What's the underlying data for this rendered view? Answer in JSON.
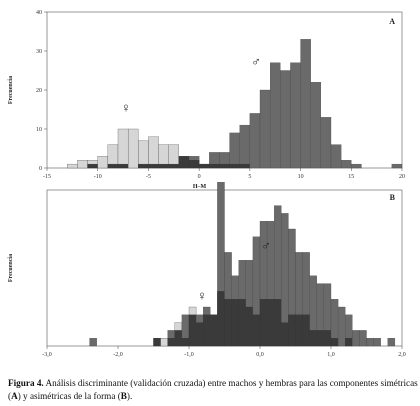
{
  "caption": {
    "figure_label": "Figura 4.",
    "text_1": " Análisis discriminante (validación cruzada) entre machos y hembras para las componentes simétricas (",
    "label_a": "A",
    "text_2": ") y asimétricas de la forma (",
    "label_b": "B",
    "text_3": ")."
  },
  "chart_data": [
    {
      "type": "bar",
      "panel": "A",
      "ylabel": "Frecuencia",
      "xlabel": "H–M",
      "xlim": [
        -15,
        20
      ],
      "ylim": [
        0,
        40
      ],
      "xticks": [
        "-15",
        "-10",
        "-5",
        "0",
        "5",
        "10",
        "15",
        "20"
      ],
      "yticks": [
        "0",
        "10",
        "20",
        "30",
        "40"
      ],
      "bin_width": 1,
      "female_symbol": "♀",
      "male_symbol": "♂",
      "colors": {
        "female": "#d6d6d6",
        "male": "#6a6a6a",
        "overlap": "#3a3a3a"
      },
      "series": [
        {
          "symbol": "♀",
          "bins_start": -13,
          "values": [
            1,
            2,
            2,
            3,
            6,
            10,
            10,
            7,
            8,
            6,
            6,
            3,
            2,
            1,
            1,
            1,
            1,
            1,
            0,
            0,
            0,
            0,
            0,
            0,
            0,
            0,
            0,
            0,
            0,
            0,
            0
          ]
        },
        {
          "symbol": "♂",
          "bins_start": -13,
          "values": [
            0,
            0,
            1,
            0,
            1,
            1,
            0,
            1,
            1,
            1,
            1,
            3,
            3,
            1,
            4,
            4,
            9,
            11,
            14,
            20,
            27,
            25,
            27,
            33,
            22,
            13,
            6,
            2,
            1,
            0,
            0,
            0,
            1
          ]
        }
      ]
    },
    {
      "type": "bar",
      "panel": "B",
      "ylabel": "Frecuencia",
      "xlim": [
        -3.0,
        2.0
      ],
      "ylim": [
        0,
        20
      ],
      "xticks": [
        "-3,0",
        "-2,0",
        "-1,0",
        "0,0",
        "1,0",
        "2,0"
      ],
      "bin_width": 0.1,
      "female_symbol": "♀",
      "male_symbol": "♂",
      "colors": {
        "female": "#d6d6d6",
        "male": "#6a6a6a",
        "overlap": "#3a3a3a"
      },
      "series": [
        {
          "symbol": "♀",
          "bins_start": -1.5,
          "values": [
            1,
            1,
            1,
            3,
            1,
            5,
            3,
            4,
            4,
            7,
            6,
            6,
            6,
            5,
            4,
            6,
            6,
            6,
            3,
            4,
            4,
            4,
            2,
            2,
            2,
            1,
            0,
            1
          ]
        },
        {
          "symbol": "♂",
          "bins_start": -2.4,
          "values": [
            1,
            0,
            0,
            0,
            0,
            0,
            0,
            0,
            0,
            1,
            0,
            2,
            2,
            4,
            4,
            4,
            5,
            4,
            21,
            12,
            9,
            11,
            11,
            14,
            16,
            16,
            18,
            17,
            15,
            12,
            12,
            9,
            8,
            8,
            6,
            5,
            4,
            2,
            2,
            1,
            1,
            0,
            1
          ]
        }
      ]
    }
  ]
}
